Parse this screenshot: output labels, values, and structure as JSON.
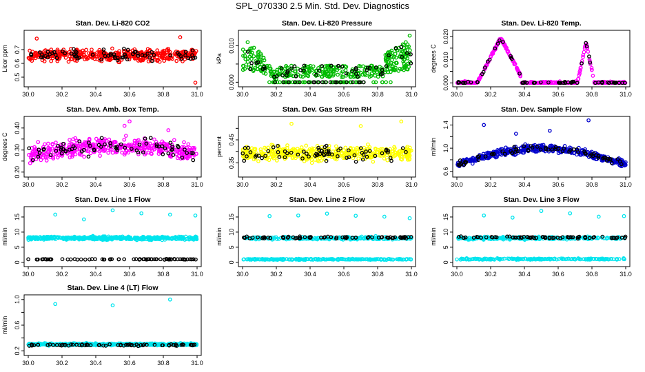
{
  "title": "SPL_070330  2.5 Min. Std. Dev. Diagnostics",
  "colors": {
    "black_points": "#000000"
  },
  "chart_data": [
    {
      "type": "scatter",
      "title": "Stan. Dev. Li-820 CO2",
      "ylabel": "Licor ppm",
      "color": "#ff0000",
      "xlim": [
        30.0,
        31.0
      ],
      "ylim": [
        0.45,
        0.82
      ],
      "xticks": [
        "30.0",
        "30.2",
        "30.4",
        "30.6",
        "30.8",
        "31.0"
      ],
      "yticks": [
        0.5,
        0.6,
        0.7
      ],
      "ytick_labels": [
        "0.5",
        "0.6",
        "0.7"
      ],
      "pattern": "co2",
      "band": [
        0.62,
        0.7
      ],
      "spread": 0.09,
      "outliers": [
        [
          30.99,
          0.46
        ],
        [
          30.05,
          0.78
        ],
        [
          30.9,
          0.79
        ]
      ]
    },
    {
      "type": "scatter",
      "title": "Stan. Dev. Li-820 Pressure",
      "ylabel": "kPa",
      "color": "#00bb00",
      "xlim": [
        30.0,
        31.0
      ],
      "ylim": [
        -0.0005,
        0.0135
      ],
      "xticks": [
        "30.0",
        "30.2",
        "30.4",
        "30.6",
        "30.8",
        "31.0"
      ],
      "yticks": [
        0.0,
        0.005,
        0.01
      ],
      "ytick_labels": [
        "0.000",
        "",
        "0.010"
      ],
      "pattern": "pressure",
      "outliers": [
        [
          30.99,
          0.0128
        ],
        [
          30.03,
          0.011
        ]
      ]
    },
    {
      "type": "scatter",
      "title": "Stan. Dev. Li-820 Temp.",
      "ylabel": "degrees C",
      "color": "#ff00ff",
      "xlim": [
        30.0,
        31.0
      ],
      "ylim": [
        -0.0005,
        0.0215
      ],
      "xticks": [
        "30.0",
        "30.2",
        "30.4",
        "30.6",
        "30.8",
        "31.0"
      ],
      "yticks": [
        0.0,
        0.005,
        0.01,
        0.015,
        0.02
      ],
      "ytick_labels": [
        "0.000",
        "",
        "0.010",
        "",
        "0.020"
      ],
      "pattern": "temp",
      "outliers": []
    },
    {
      "type": "scatter",
      "title": "Stan. Dev. Amb. Box Temp.",
      "ylabel": "degrees C",
      "color": "#ff00ff",
      "xlim": [
        30.0,
        31.0
      ],
      "ylim": [
        0.19,
        0.44
      ],
      "xticks": [
        "30.0",
        "30.2",
        "30.4",
        "30.6",
        "30.8",
        "31.0"
      ],
      "yticks": [
        0.2,
        0.25,
        0.3,
        0.35,
        0.4
      ],
      "ytick_labels": [
        "0.20",
        "",
        "0.30",
        "",
        "0.40"
      ],
      "pattern": "boxtemp",
      "outliers": [
        [
          30.6,
          0.43
        ],
        [
          30.57,
          0.41
        ],
        [
          30.83,
          0.39
        ]
      ]
    },
    {
      "type": "scatter",
      "title": "Stan. Dev. Gas Stream RH",
      "ylabel": "percent",
      "color": "#ffff00",
      "xlim": [
        30.0,
        31.0
      ],
      "ylim": [
        0.3,
        0.54
      ],
      "xticks": [
        "30.0",
        "30.2",
        "30.4",
        "30.6",
        "30.8",
        "31.0"
      ],
      "yticks": [
        0.35,
        0.4,
        0.45,
        0.5
      ],
      "ytick_labels": [
        "0.35",
        "",
        "0.45",
        ""
      ],
      "pattern": "rh",
      "band": [
        0.36,
        0.42
      ],
      "spread": 0.05,
      "outliers": [
        [
          30.94,
          0.53
        ],
        [
          30.29,
          0.52
        ],
        [
          30.7,
          0.51
        ]
      ]
    },
    {
      "type": "scatter",
      "title": "Stan. Dev. Sample Flow",
      "ylabel": "ml/min",
      "color": "#0000cc",
      "xlim": [
        30.0,
        31.0
      ],
      "ylim": [
        0.55,
        1.5
      ],
      "xticks": [
        "30.0",
        "30.2",
        "30.4",
        "30.6",
        "30.8",
        "31.0"
      ],
      "yticks": [
        0.6,
        0.8,
        1.0,
        1.2,
        1.4
      ],
      "ytick_labels": [
        "0.6",
        "",
        "1.0",
        "",
        "1.4"
      ],
      "pattern": "sampleflow",
      "outliers": [
        [
          30.16,
          1.4
        ],
        [
          30.78,
          1.48
        ],
        [
          30.35,
          1.25
        ],
        [
          30.55,
          1.3
        ]
      ]
    },
    {
      "type": "scatter",
      "title": "Stan. Dev. Line 1 Flow",
      "ylabel": "ml/min",
      "color": "#00e5ee",
      "xlim": [
        30.0,
        31.0
      ],
      "ylim": [
        -0.5,
        17.5
      ],
      "xticks": [
        "30.0",
        "30.2",
        "30.4",
        "30.6",
        "30.8",
        "31.0"
      ],
      "yticks": [
        0,
        5,
        10,
        15
      ],
      "ytick_labels": [
        "0",
        "5",
        "10",
        "15"
      ],
      "pattern": "line1",
      "outliers": [
        [
          30.16,
          15.8
        ],
        [
          30.33,
          14.2
        ],
        [
          30.5,
          17.2
        ],
        [
          30.67,
          16.2
        ],
        [
          30.84,
          15.8
        ],
        [
          30.99,
          15.5
        ]
      ]
    },
    {
      "type": "scatter",
      "title": "Stan. Dev. Line 2 Flow",
      "ylabel": "ml/min",
      "color": "#00e5ee",
      "xlim": [
        30.0,
        31.0
      ],
      "ylim": [
        -0.5,
        17.5
      ],
      "xticks": [
        "30.0",
        "30.2",
        "30.4",
        "30.6",
        "30.8",
        "31.0"
      ],
      "yticks": [
        0,
        5,
        10,
        15
      ],
      "ytick_labels": [
        "0",
        "5",
        "10",
        "15"
      ],
      "pattern": "line2",
      "outliers": [
        [
          30.16,
          15.3
        ],
        [
          30.33,
          15.5
        ],
        [
          30.5,
          16.1
        ],
        [
          30.67,
          15.4
        ],
        [
          30.84,
          15.1
        ],
        [
          30.99,
          14.6
        ]
      ]
    },
    {
      "type": "scatter",
      "title": "Stan. Dev. Line 3 Flow",
      "ylabel": "ml/min",
      "color": "#00e5ee",
      "xlim": [
        30.0,
        31.0
      ],
      "ylim": [
        -0.5,
        17.5
      ],
      "xticks": [
        "30.0",
        "30.2",
        "30.4",
        "30.6",
        "30.8",
        "31.0"
      ],
      "yticks": [
        0,
        5,
        10,
        15
      ],
      "ytick_labels": [
        "0",
        "5",
        "10",
        "15"
      ],
      "pattern": "line3",
      "outliers": [
        [
          30.16,
          15.5
        ],
        [
          30.33,
          14.8
        ],
        [
          30.5,
          17.0
        ],
        [
          30.67,
          16.2
        ],
        [
          30.84,
          15.1
        ],
        [
          30.99,
          15.3
        ]
      ]
    },
    {
      "type": "scatter",
      "title": "Stan. Dev. Line 4 (LT) Flow",
      "ylabel": "ml/min",
      "color": "#00e5ee",
      "xlim": [
        30.0,
        31.0
      ],
      "ylim": [
        0.17,
        1.03
      ],
      "xticks": [
        "30.0",
        "30.2",
        "30.4",
        "30.6",
        "30.8",
        "31.0"
      ],
      "yticks": [
        0.2,
        0.4,
        0.6,
        0.8,
        1.0
      ],
      "ytick_labels": [
        "0.2",
        "",
        "0.6",
        "",
        "1.0"
      ],
      "pattern": "line4",
      "outliers": [
        [
          30.16,
          0.93
        ],
        [
          30.5,
          0.91
        ],
        [
          30.84,
          1.0
        ]
      ]
    }
  ]
}
